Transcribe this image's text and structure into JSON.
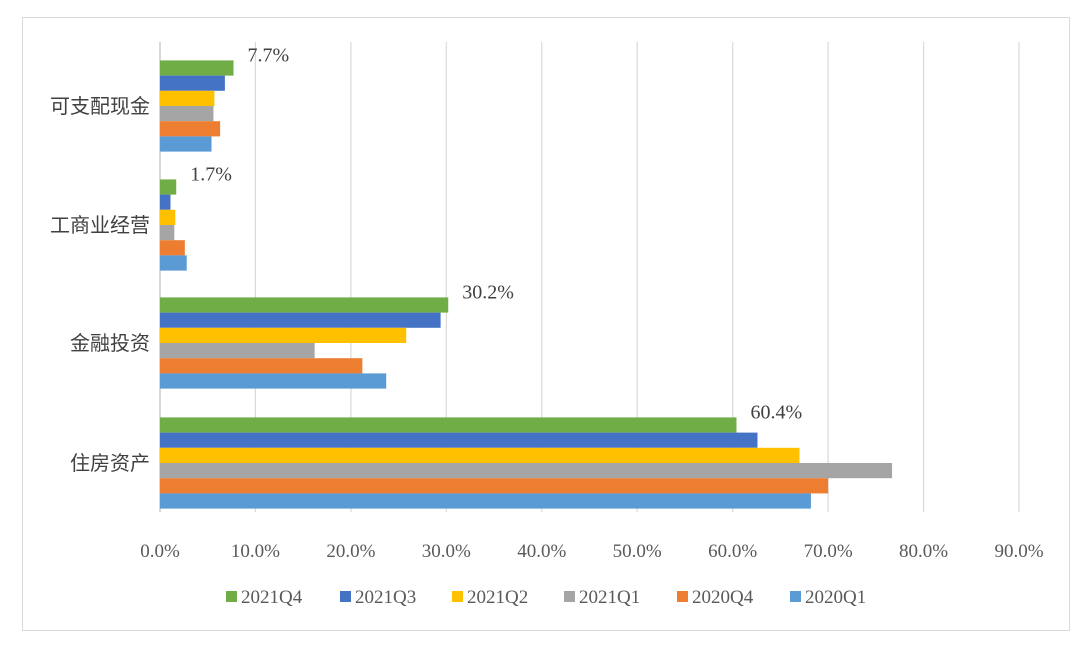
{
  "chart_data": {
    "type": "bar",
    "orientation": "horizontal",
    "categories": [
      "可支配现金",
      "工商业经营",
      "金融投资",
      "住房资产"
    ],
    "series": [
      {
        "name": "2021Q4",
        "color": "#70ad47",
        "values": [
          7.7,
          1.7,
          30.2,
          60.4
        ]
      },
      {
        "name": "2021Q3",
        "color": "#4472c4",
        "values": [
          6.8,
          1.1,
          29.4,
          62.6
        ]
      },
      {
        "name": "2021Q2",
        "color": "#ffc000",
        "values": [
          5.7,
          1.6,
          25.8,
          67.0
        ]
      },
      {
        "name": "2021Q1",
        "color": "#a5a5a5",
        "values": [
          5.6,
          1.5,
          16.2,
          76.7
        ]
      },
      {
        "name": "2020Q4",
        "color": "#ed7d31",
        "values": [
          6.3,
          2.6,
          21.2,
          70.0
        ]
      },
      {
        "name": "2020Q1",
        "color": "#5b9bd5",
        "values": [
          5.4,
          2.8,
          23.7,
          68.2
        ]
      }
    ],
    "data_labels": [
      {
        "category": "可支配现金",
        "series": "2021Q4",
        "text": "7.7%"
      },
      {
        "category": "工商业经营",
        "series": "2021Q4",
        "text": "1.7%"
      },
      {
        "category": "金融投资",
        "series": "2021Q4",
        "text": "30.2%"
      },
      {
        "category": "住房资产",
        "series": "2021Q4",
        "text": "60.4%"
      }
    ],
    "x_ticks": [
      "0.0%",
      "10.0%",
      "20.0%",
      "30.0%",
      "40.0%",
      "50.0%",
      "60.0%",
      "70.0%",
      "80.0%",
      "90.0%"
    ],
    "xlim": [
      0,
      90
    ],
    "grid": true,
    "legend_position": "bottom",
    "title": "",
    "xlabel": "",
    "ylabel": ""
  }
}
